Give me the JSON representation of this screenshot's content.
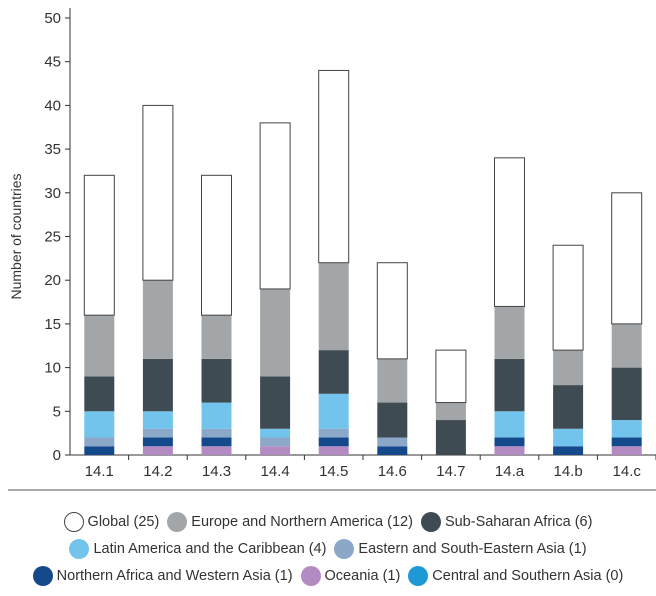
{
  "chart_data": {
    "type": "bar",
    "stacked": true,
    "title": "",
    "xlabel": "",
    "ylabel": "Number of countries",
    "ylim": [
      0,
      50
    ],
    "yticks": [
      0,
      5,
      10,
      15,
      20,
      25,
      30,
      35,
      40,
      45,
      50
    ],
    "grid": false,
    "legend_position": "bottom",
    "categories": [
      "14.1",
      "14.2",
      "14.3",
      "14.4",
      "14.5",
      "14.6",
      "14.7",
      "14.a",
      "14.b",
      "14.c"
    ],
    "series": [
      {
        "name": "Oceania (1)",
        "color": "#b48ac2",
        "values": [
          0,
          1,
          1,
          1,
          1,
          0,
          0,
          1,
          0,
          1
        ]
      },
      {
        "name": "Northern Africa and Western Asia (1)",
        "color": "#144a8c",
        "values": [
          1,
          1,
          1,
          0,
          1,
          1,
          0,
          1,
          1,
          1
        ]
      },
      {
        "name": "Central and Southern Asia (0)",
        "color": "#1d9ad6",
        "values": [
          0,
          0,
          0,
          0,
          0,
          0,
          0,
          0,
          0,
          0
        ]
      },
      {
        "name": "Eastern and South-Eastern Asia (1)",
        "color": "#8ca8c9",
        "values": [
          1,
          1,
          1,
          1,
          1,
          1,
          0,
          0,
          0,
          0
        ]
      },
      {
        "name": "Latin America and the Caribbean (4)",
        "color": "#72c4ec",
        "values": [
          3,
          2,
          3,
          1,
          4,
          0,
          0,
          3,
          2,
          2
        ]
      },
      {
        "name": "Sub-Saharan Africa (6)",
        "color": "#3f4b52",
        "values": [
          4,
          6,
          5,
          6,
          5,
          4,
          4,
          6,
          5,
          6
        ]
      },
      {
        "name": "Europe and Northern America (12)",
        "color": "#a2a6a9",
        "values": [
          7,
          9,
          5,
          10,
          10,
          5,
          2,
          6,
          4,
          5
        ]
      },
      {
        "name": "Global (25)",
        "color": "#ffffff",
        "values": [
          16,
          20,
          16,
          19,
          22,
          11,
          6,
          17,
          12,
          15
        ]
      }
    ]
  },
  "legend": {
    "rows": [
      [
        {
          "label": "Global (25)",
          "color": "#ffffff"
        },
        {
          "label": "Europe and Northern America (12)",
          "color": "#a2a6a9"
        },
        {
          "label": "Sub-Saharan Africa (6)",
          "color": "#3f4b52"
        }
      ],
      [
        {
          "label": "Latin America and the Caribbean (4)",
          "color": "#72c4ec"
        },
        {
          "label": "Eastern and South-Eastern Asia (1)",
          "color": "#8ca8c9"
        }
      ],
      [
        {
          "label": "Northern Africa and Western Asia (1)",
          "color": "#144a8c"
        },
        {
          "label": "Oceania (1)",
          "color": "#b48ac2"
        },
        {
          "label": "Central and Southern Asia (0)",
          "color": "#1d9ad6"
        }
      ]
    ]
  }
}
